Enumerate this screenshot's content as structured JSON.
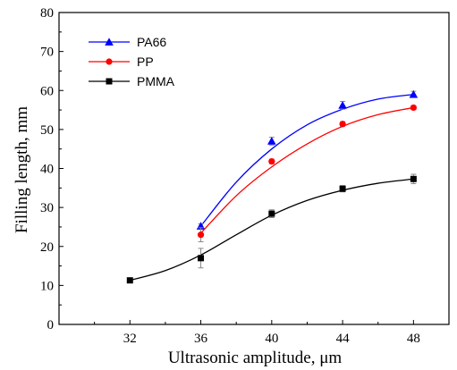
{
  "chart_data": {
    "type": "scatter",
    "title": "",
    "xlabel": "Ultrasonic amplitude, μm",
    "ylabel": "Filling length, mm",
    "xlim": [
      28,
      50
    ],
    "ylim": [
      0,
      80
    ],
    "xticks": [
      32,
      36,
      40,
      44,
      48
    ],
    "yticks": [
      0,
      10,
      20,
      30,
      40,
      50,
      60,
      70,
      80
    ],
    "grid": false,
    "legend_position": "top-left",
    "series": [
      {
        "name": "PA66",
        "color": "#0000ff",
        "marker": "triangle",
        "x": [
          36,
          40,
          44,
          48
        ],
        "y": [
          25.2,
          47.0,
          56.2,
          59.0
        ],
        "error": [
          0.6,
          1.0,
          1.0,
          0.8
        ],
        "fit": [
          [
            36,
            25.2
          ],
          [
            38,
            36.5
          ],
          [
            40,
            45.0
          ],
          [
            42,
            51.2
          ],
          [
            44,
            55.2
          ],
          [
            46,
            57.8
          ],
          [
            48,
            59.0
          ]
        ]
      },
      {
        "name": "PP",
        "color": "#ff0000",
        "marker": "circle",
        "x": [
          36,
          40,
          44,
          48
        ],
        "y": [
          23.0,
          41.8,
          51.4,
          55.6
        ],
        "error": [
          1.8,
          0.6,
          0.6,
          0.5
        ],
        "fit": [
          [
            36,
            23.4
          ],
          [
            38,
            33.0
          ],
          [
            40,
            40.4
          ],
          [
            42,
            46.3
          ],
          [
            44,
            50.8
          ],
          [
            46,
            53.8
          ],
          [
            48,
            55.6
          ]
        ]
      },
      {
        "name": "PMMA",
        "color": "#000000",
        "marker": "square",
        "x": [
          32,
          36,
          40,
          44,
          48
        ],
        "y": [
          11.3,
          17.0,
          28.4,
          34.8,
          37.3
        ],
        "error": [
          0.3,
          2.5,
          1.0,
          0.8,
          1.2
        ],
        "fit": [
          [
            32,
            11.3
          ],
          [
            34,
            13.8
          ],
          [
            36,
            17.8
          ],
          [
            38,
            23.0
          ],
          [
            40,
            28.0
          ],
          [
            42,
            31.8
          ],
          [
            44,
            34.4
          ],
          [
            46,
            36.2
          ],
          [
            48,
            37.3
          ]
        ]
      }
    ]
  }
}
